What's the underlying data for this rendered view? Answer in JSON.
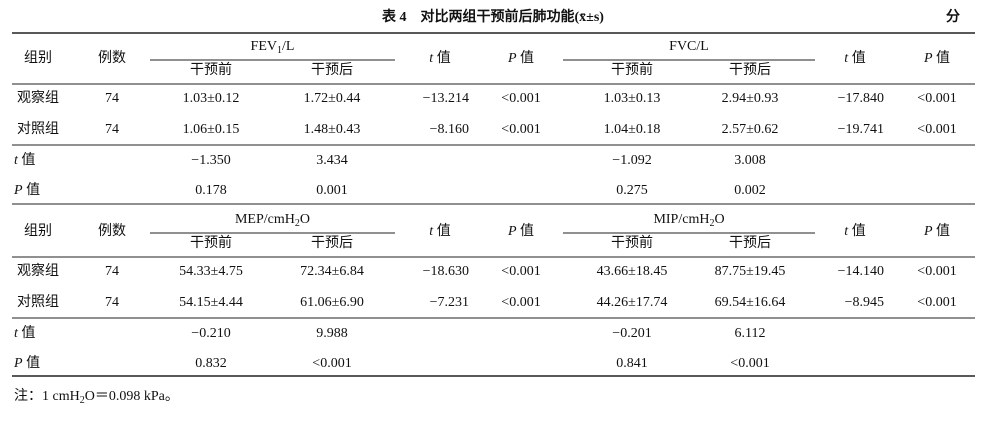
{
  "caption": {
    "title": "表 4　对比两组干预前后肺功能(x̄±s)",
    "unit": "分"
  },
  "tables": [
    {
      "header": {
        "group": "组别",
        "n": "例数",
        "stat_t": {
          "sym": "t",
          "word": "值"
        },
        "stat_p": {
          "sym": "P",
          "word": "值"
        },
        "measures": [
          {
            "name": "FEV",
            "sub": "1",
            "unit": "/L",
            "before": "干预前",
            "after": "干预后"
          },
          {
            "name": "FVC/L",
            "before": "干预前",
            "after": "干预后"
          }
        ]
      },
      "groups": [
        {
          "label": "观察组",
          "n": 74,
          "cells": [
            "1.03±0.12",
            "1.72±0.44",
            "−13.214",
            "<0.001",
            "1.03±0.13",
            "2.94±0.93",
            "−17.840",
            "<0.001"
          ]
        },
        {
          "label": "对照组",
          "n": 74,
          "cells": [
            "1.06±0.15",
            "1.48±0.43",
            "−8.160",
            "<0.001",
            "1.04±0.18",
            "2.57±0.62",
            "−19.741",
            "<0.001"
          ]
        }
      ],
      "tests": [
        {
          "label": {
            "sym": "t",
            "word": "值"
          },
          "cells": [
            "−1.350",
            "3.434",
            "−1.092",
            "3.008"
          ]
        },
        {
          "label": {
            "sym": "P",
            "word": "值"
          },
          "cells": [
            "0.178",
            "0.001",
            "0.275",
            "0.002"
          ]
        }
      ]
    },
    {
      "header": {
        "group": "组别",
        "n": "例数",
        "stat_t": {
          "sym": "t",
          "word": "值"
        },
        "stat_p": {
          "sym": "P",
          "word": "值"
        },
        "measures": [
          {
            "name": "MEP/cmH",
            "sub": "2",
            "unit": "O",
            "before": "干预前",
            "after": "干预后"
          },
          {
            "name": "MIP/cmH",
            "sub": "2",
            "unit": "O",
            "before": "干预前",
            "after": "干预后"
          }
        ]
      },
      "groups": [
        {
          "label": "观察组",
          "n": 74,
          "cells": [
            "54.33±4.75",
            "72.34±6.84",
            "−18.630",
            "<0.001",
            "43.66±18.45",
            "87.75±19.45",
            "−14.140",
            "<0.001"
          ]
        },
        {
          "label": "对照组",
          "n": 74,
          "cells": [
            "54.15±4.44",
            "61.06±6.90",
            "−7.231",
            "<0.001",
            "44.26±17.74",
            "69.54±16.64",
            "−8.945",
            "<0.001"
          ]
        }
      ],
      "tests": [
        {
          "label": {
            "sym": "t",
            "word": "值"
          },
          "cells": [
            "−0.210",
            "9.988",
            "−0.201",
            "6.112"
          ]
        },
        {
          "label": {
            "sym": "P",
            "word": "值"
          },
          "cells": [
            "0.832",
            "<0.001",
            "0.841",
            "<0.001"
          ]
        }
      ]
    }
  ],
  "note": {
    "prefix": "注：1 cmH",
    "sub": "2",
    "suffix": "O＝0.098 kPa。"
  }
}
